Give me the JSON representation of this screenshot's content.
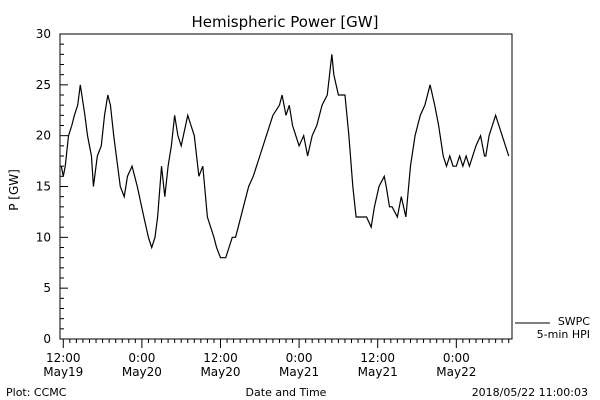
{
  "chart_data": {
    "type": "line",
    "title": "Hemispheric Power [GW]",
    "xlabel": "Date and Time",
    "ylabel": "P [GW]",
    "ylim": [
      0,
      30
    ],
    "yticks": [
      0,
      5,
      10,
      15,
      20,
      25,
      30
    ],
    "xlim_hours": [
      -0.5,
      68.5
    ],
    "x_ticks": [
      {
        "top": "12:00",
        "bottom": "May19"
      },
      {
        "top": "0:00",
        "bottom": "May20"
      },
      {
        "top": "12:00",
        "bottom": "May20"
      },
      {
        "top": "0:00",
        "bottom": "May21"
      },
      {
        "top": "12:00",
        "bottom": "May21"
      },
      {
        "top": "0:00",
        "bottom": "May22"
      }
    ],
    "x_tick_hours": [
      0,
      12,
      24,
      36,
      48,
      60
    ],
    "footer_left": "Plot: CCMC",
    "footer_right": "2018/05/22 11:00:03",
    "series": [
      {
        "name": "SWPC",
        "color": "#000000",
        "x": [
          -0.3,
          0,
          0.3,
          0.8,
          1.3,
          1.7,
          2.2,
          2.6,
          3.3,
          3.7,
          4.3,
          4.6,
          5.2,
          5.8,
          6.3,
          6.8,
          7.2,
          7.7,
          8.3,
          8.7,
          9.3,
          9.8,
          10.5,
          11.3,
          12.3,
          13,
          13.5,
          14,
          14.4,
          15,
          15.5,
          16,
          16.5,
          17,
          17.5,
          18,
          19,
          19.5,
          20,
          20.7,
          21.3,
          22,
          22.5,
          23,
          23.4,
          24,
          24.8,
          25.3,
          25.8,
          26.3,
          26.7,
          27.5,
          28.3,
          29,
          30,
          31,
          32,
          33,
          33.4,
          34,
          34.5,
          35,
          35.5,
          36,
          36.7,
          37.3,
          38,
          38.7,
          39.5,
          40.3,
          41,
          41.3,
          42,
          42.5,
          43,
          43.6,
          44.2,
          44.7,
          45.5,
          46.3,
          47,
          47.5,
          48.2,
          49,
          49.3,
          49.8,
          50.2,
          51,
          51.6,
          52.3,
          53,
          53.7,
          54.5,
          55.2,
          56,
          56.7,
          57.3,
          58,
          58.5,
          59,
          59.5,
          60,
          60.5,
          61,
          61.5,
          62,
          63,
          63.7,
          64.3,
          64.5,
          65,
          65.5,
          66,
          66.5,
          67,
          67.5,
          68
        ],
        "y": [
          17,
          16,
          17,
          20,
          21,
          22,
          23,
          25,
          22,
          20,
          18,
          15,
          18,
          19,
          22,
          24,
          23,
          20,
          17,
          15,
          14,
          16,
          17,
          15,
          12,
          10,
          9,
          10,
          12,
          17,
          14,
          17,
          19,
          22,
          20,
          19,
          22,
          21,
          20,
          16,
          17,
          12,
          11,
          10,
          9,
          8,
          8,
          9,
          10,
          10,
          11,
          13,
          15,
          16,
          18,
          20,
          22,
          23,
          24,
          22,
          23,
          21,
          20,
          19,
          20,
          18,
          20,
          21,
          23,
          24,
          28,
          26,
          24,
          24,
          24,
          20,
          15,
          12,
          12,
          12,
          11,
          13,
          15,
          16,
          15,
          13,
          13,
          12,
          14,
          12,
          17,
          20,
          22,
          23,
          25,
          23,
          21,
          18,
          17,
          18,
          17,
          17,
          18,
          17,
          18,
          17,
          19,
          20,
          18,
          18,
          20,
          21,
          22,
          21,
          20,
          19,
          18
        ]
      },
      {
        "name": "5-min HPI",
        "color": "#000000",
        "x": [],
        "y": []
      }
    ]
  }
}
